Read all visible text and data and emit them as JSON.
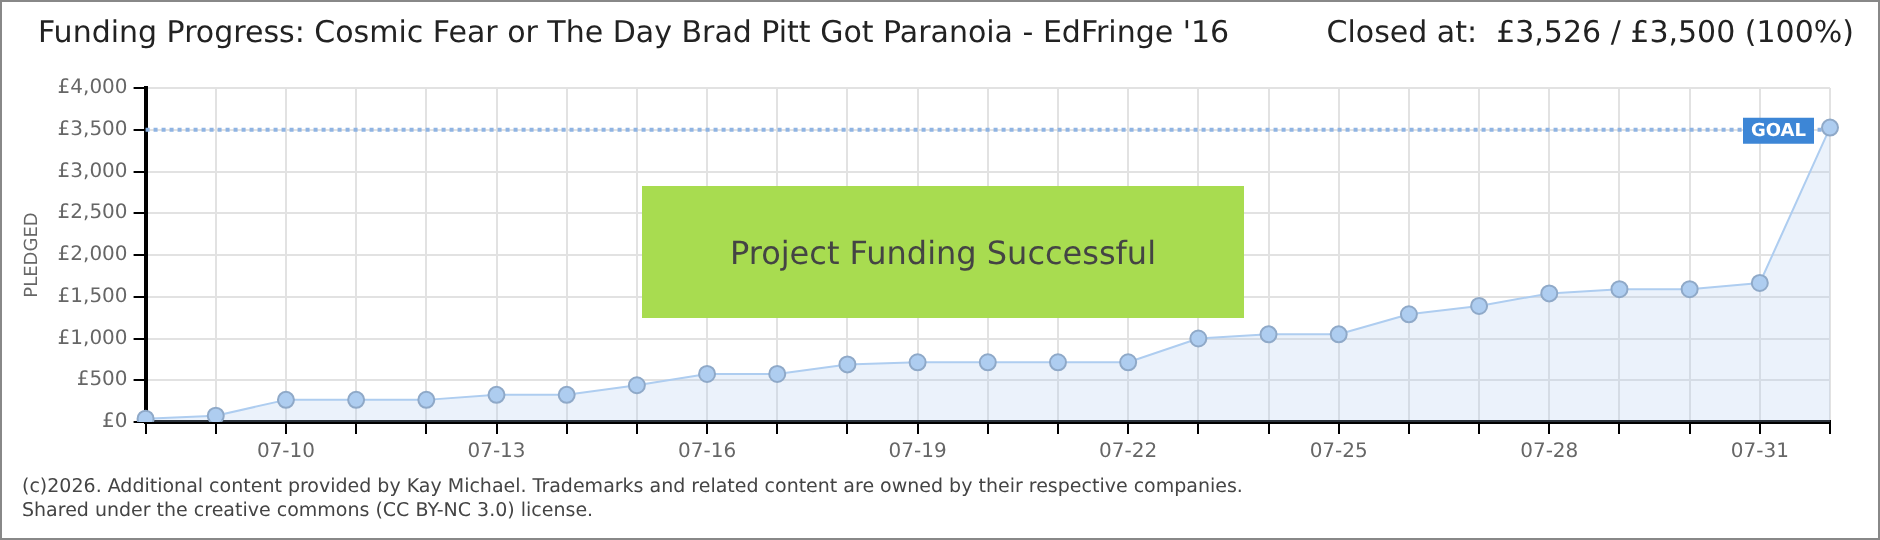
{
  "chart_data": {
    "type": "area",
    "title": "Funding Progress: Cosmic Fear or The Day Brad Pitt Got Paranoia - EdFringe '16",
    "subtitle": "Closed at:  £3,526 / £3,500 (100%)",
    "ylabel": "PLEDGED",
    "categories": [
      null,
      null,
      "07-10",
      null,
      null,
      "07-13",
      null,
      null,
      "07-16",
      null,
      null,
      "07-19",
      null,
      null,
      "07-22",
      null,
      null,
      "07-25",
      null,
      null,
      "07-28",
      null,
      null,
      "07-31",
      null
    ],
    "series": [
      {
        "color": "#aecdf0",
        "values": [
          40,
          75,
          265,
          265,
          265,
          325,
          325,
          440,
          575,
          575,
          690,
          715,
          715,
          715,
          715,
          1000,
          1050,
          1050,
          1290,
          1390,
          1540,
          1590,
          1590,
          1665,
          3526
        ]
      }
    ],
    "ylim": [
      0,
      4000
    ],
    "yticks": [
      {
        "value": 0,
        "label": "£0"
      },
      {
        "value": 500,
        "label": "£500"
      },
      {
        "value": 1000,
        "label": "£1,000"
      },
      {
        "value": 1500,
        "label": "£1,500"
      },
      {
        "value": 2000,
        "label": "£2,000"
      },
      {
        "value": 2500,
        "label": "£2,500"
      },
      {
        "value": 3000,
        "label": "£3,000"
      },
      {
        "value": 3500,
        "label": "£3,500"
      },
      {
        "value": 4000,
        "label": "£4,000"
      }
    ],
    "ref_lines": [
      {
        "axis": "y",
        "value": 3500,
        "label": "GOAL",
        "color": "#8fb4e3",
        "line_style": "dotted"
      }
    ],
    "annotations": [
      "Project Funding Successful",
      "(c)2026. Additional content provided by Kay Michael. Trademarks and related content are owned by their respective companies.",
      "Shared under the creative commons (CC BY-NC 3.0) license."
    ],
    "grid": true,
    "legend": false,
    "marker": "circle",
    "line_style": "solid"
  }
}
